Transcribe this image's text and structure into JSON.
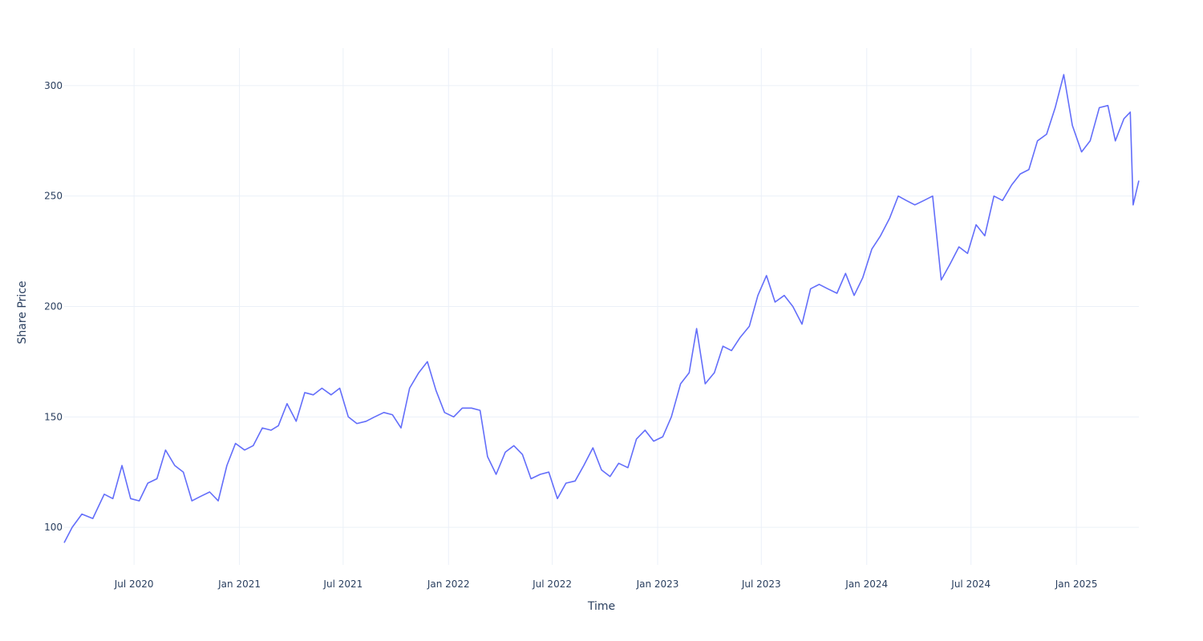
{
  "chart_data": {
    "type": "line",
    "title": "",
    "xlabel": "Time",
    "ylabel": "Share Price",
    "x_start": "2020-03-01",
    "x_end": "2025-04-20",
    "ylim": [
      83,
      317
    ],
    "grid": true,
    "legend": "none",
    "series_color": "#636efa",
    "x_ticks": [
      {
        "date": "2020-07-01",
        "label": "Jul 2020"
      },
      {
        "date": "2021-01-01",
        "label": "Jan 2021"
      },
      {
        "date": "2021-07-01",
        "label": "Jul 2021"
      },
      {
        "date": "2022-01-01",
        "label": "Jan 2022"
      },
      {
        "date": "2022-07-01",
        "label": "Jul 2022"
      },
      {
        "date": "2023-01-01",
        "label": "Jan 2023"
      },
      {
        "date": "2023-07-01",
        "label": "Jul 2023"
      },
      {
        "date": "2024-01-01",
        "label": "Jan 2024"
      },
      {
        "date": "2024-07-01",
        "label": "Jul 2024"
      },
      {
        "date": "2025-01-01",
        "label": "Jan 2025"
      }
    ],
    "y_ticks": [
      {
        "value": 100,
        "label": "100"
      },
      {
        "value": 150,
        "label": "150"
      },
      {
        "value": 200,
        "label": "200"
      },
      {
        "value": 250,
        "label": "250"
      },
      {
        "value": 300,
        "label": "300"
      }
    ],
    "series": [
      {
        "x": [
          "2020-03-01",
          "2020-03-15",
          "2020-04-01",
          "2020-04-20",
          "2020-05-10",
          "2020-05-25",
          "2020-06-10",
          "2020-06-25",
          "2020-07-10",
          "2020-07-25",
          "2020-08-10",
          "2020-08-25",
          "2020-09-10",
          "2020-09-25",
          "2020-10-10",
          "2020-10-25",
          "2020-11-10",
          "2020-11-25",
          "2020-12-10",
          "2020-12-25",
          "2021-01-10",
          "2021-01-25",
          "2021-02-10",
          "2021-02-25",
          "2021-03-10",
          "2021-03-25",
          "2021-04-10",
          "2021-04-25",
          "2021-05-10",
          "2021-05-25",
          "2021-06-10",
          "2021-06-25",
          "2021-07-10",
          "2021-07-25",
          "2021-08-10",
          "2021-08-25",
          "2021-09-10",
          "2021-09-25",
          "2021-10-10",
          "2021-10-25",
          "2021-11-10",
          "2021-11-25",
          "2021-12-10",
          "2021-12-25",
          "2022-01-10",
          "2022-01-25",
          "2022-02-10",
          "2022-02-25",
          "2022-03-10",
          "2022-03-25",
          "2022-04-10",
          "2022-04-25",
          "2022-05-10",
          "2022-05-25",
          "2022-06-10",
          "2022-06-25",
          "2022-07-10",
          "2022-07-25",
          "2022-08-10",
          "2022-08-25",
          "2022-09-10",
          "2022-09-25",
          "2022-10-10",
          "2022-10-25",
          "2022-11-10",
          "2022-11-25",
          "2022-12-10",
          "2022-12-25",
          "2023-01-10",
          "2023-01-25",
          "2023-02-10",
          "2023-02-25",
          "2023-03-10",
          "2023-03-25",
          "2023-04-10",
          "2023-04-25",
          "2023-05-10",
          "2023-05-25",
          "2023-06-10",
          "2023-06-25",
          "2023-07-10",
          "2023-07-25",
          "2023-08-10",
          "2023-08-25",
          "2023-09-10",
          "2023-09-25",
          "2023-10-10",
          "2023-10-25",
          "2023-11-10",
          "2023-11-25",
          "2023-12-10",
          "2023-12-25",
          "2024-01-10",
          "2024-01-25",
          "2024-02-10",
          "2024-02-25",
          "2024-03-10",
          "2024-03-25",
          "2024-04-10",
          "2024-04-25",
          "2024-05-10",
          "2024-05-25",
          "2024-06-10",
          "2024-06-25",
          "2024-07-10",
          "2024-07-25",
          "2024-08-10",
          "2024-08-25",
          "2024-09-10",
          "2024-09-25",
          "2024-10-10",
          "2024-10-25",
          "2024-11-10",
          "2024-11-25",
          "2024-12-10",
          "2024-12-25",
          "2025-01-10",
          "2025-01-25",
          "2025-02-10",
          "2025-02-25",
          "2025-03-10",
          "2025-03-25",
          "2025-04-05",
          "2025-04-10",
          "2025-04-20"
        ],
        "values": [
          93,
          100,
          106,
          104,
          115,
          113,
          128,
          113,
          112,
          120,
          122,
          135,
          128,
          125,
          112,
          114,
          116,
          112,
          128,
          138,
          135,
          137,
          145,
          144,
          146,
          156,
          148,
          161,
          160,
          163,
          160,
          163,
          150,
          147,
          148,
          150,
          152,
          151,
          145,
          163,
          170,
          175,
          162,
          152,
          150,
          154,
          154,
          153,
          132,
          124,
          134,
          137,
          133,
          122,
          124,
          125,
          113,
          120,
          121,
          128,
          136,
          126,
          123,
          129,
          127,
          140,
          144,
          139,
          141,
          150,
          165,
          170,
          190,
          165,
          170,
          182,
          180,
          186,
          191,
          205,
          214,
          202,
          205,
          200,
          192,
          208,
          210,
          208,
          206,
          215,
          205,
          213,
          226,
          232,
          240,
          250,
          248,
          246,
          248,
          250,
          212,
          219,
          227,
          224,
          237,
          232,
          250,
          248,
          255,
          260,
          262,
          275,
          278,
          290,
          305,
          282,
          270,
          275,
          290,
          291,
          275,
          285,
          288,
          246,
          257
        ]
      }
    ]
  }
}
